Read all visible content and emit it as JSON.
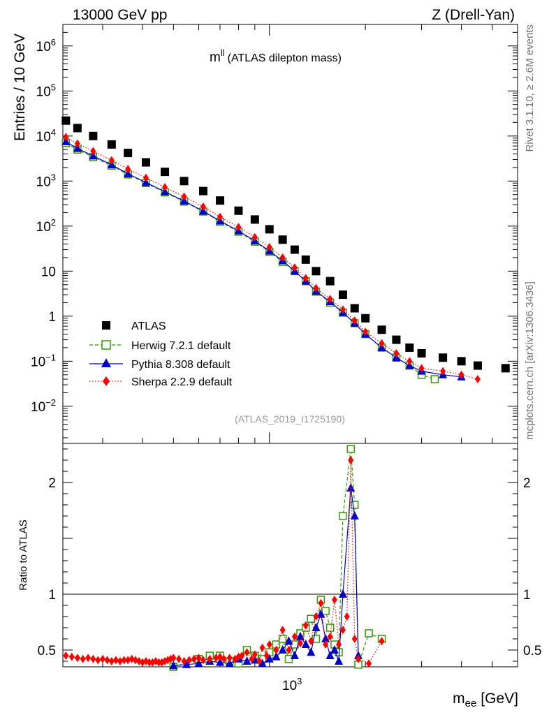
{
  "header": {
    "left": "13000 GeV pp",
    "right": "Z (Drell-Yan)"
  },
  "side_labels": {
    "top": "Rivet 3.1.10, ≥ 2.6M events",
    "bottom": "mcplots.cern.ch [arXiv:1306.3436]"
  },
  "chart_data": [
    {
      "type": "scatter",
      "title_main": "m",
      "title_sup": "ll",
      "title_rest": "(ATLAS dilepton mass)",
      "analysis_tag": "(ATLAS_2019_I1725190)",
      "ylabel": "Entries / 10 GeV",
      "xlabel_main": "m",
      "xlabel_sub": "ee",
      "xlabel_unit": "[GeV]",
      "xscale": "log",
      "yscale": "log",
      "xlim": [
        225,
        6000
      ],
      "ylim": [
        0.0015,
        3000000
      ],
      "x_tick_label_base": "10",
      "x_tick_label_exp": "3",
      "y_ticks": [
        {
          "v": 1000000,
          "base": "10",
          "exp": "6"
        },
        {
          "v": 100000,
          "base": "10",
          "exp": "5"
        },
        {
          "v": 10000,
          "base": "10",
          "exp": "4"
        },
        {
          "v": 1000,
          "base": "10",
          "exp": "3"
        },
        {
          "v": 100,
          "base": "10",
          "exp": "2"
        },
        {
          "v": 10,
          "base": "10",
          "exp": ""
        },
        {
          "v": 1,
          "base": "1",
          "exp": ""
        },
        {
          "v": 0.1,
          "base": "10",
          "exp": "−1"
        },
        {
          "v": 0.01,
          "base": "10",
          "exp": "−2"
        }
      ],
      "legend_position": "bottom-left",
      "series": [
        {
          "name": "ATLAS",
          "color": "#000000",
          "marker": "square-filled",
          "x": [
            230,
            250,
            280,
            320,
            360,
            410,
            470,
            540,
            620,
            700,
            800,
            900,
            1000,
            1100,
            1200,
            1300,
            1400,
            1550,
            1700,
            1850,
            2000,
            2250,
            2500,
            2750,
            3000,
            3500,
            4000,
            4500,
            5500
          ],
          "y": [
            22000,
            15000,
            10000,
            6500,
            4200,
            2600,
            1600,
            1000,
            600,
            370,
            220,
            140,
            85,
            50,
            30,
            18,
            10,
            6,
            3,
            1.5,
            0.9,
            0.5,
            0.3,
            0.2,
            0.15,
            0.12,
            0.1,
            0.08,
            0.07
          ]
        },
        {
          "name": "Herwig 7.2.1 default",
          "color": "#339900",
          "marker": "square-open",
          "line": "dashed",
          "x": [
            230,
            250,
            280,
            320,
            360,
            410,
            470,
            540,
            620,
            700,
            800,
            900,
            1000,
            1100,
            1200,
            1300,
            1400,
            1550,
            1700,
            1850,
            2000,
            2250,
            2500,
            2750,
            3000,
            3300
          ],
          "y": [
            7000,
            5000,
            3400,
            2200,
            1400,
            900,
            560,
            350,
            210,
            125,
            75,
            45,
            27,
            16,
            10,
            6,
            3.5,
            2.0,
            1.2,
            0.7,
            0.4,
            0.2,
            0.12,
            0.08,
            0.05,
            0.04
          ]
        },
        {
          "name": "Pythia 8.308 default",
          "color": "#0000cc",
          "marker": "triangle",
          "line": "solid",
          "x": [
            230,
            250,
            280,
            320,
            360,
            410,
            470,
            540,
            620,
            700,
            800,
            900,
            1000,
            1100,
            1200,
            1300,
            1400,
            1550,
            1700,
            1850,
            2000,
            2250,
            2500,
            2750,
            3000,
            3500,
            4000
          ],
          "y": [
            7500,
            5300,
            3600,
            2300,
            1450,
            930,
            580,
            360,
            215,
            130,
            78,
            47,
            28,
            17,
            10,
            6,
            3.6,
            2.1,
            1.2,
            0.7,
            0.4,
            0.2,
            0.12,
            0.08,
            0.06,
            0.05,
            0.045
          ]
        },
        {
          "name": "Sherpa 2.2.9 default",
          "color": "#ff0000",
          "marker": "diamond",
          "line": "dotted",
          "x": [
            230,
            250,
            280,
            320,
            360,
            410,
            470,
            540,
            620,
            700,
            800,
            900,
            1000,
            1100,
            1200,
            1300,
            1400,
            1550,
            1700,
            1850,
            2000,
            2250,
            2500,
            2750,
            3000,
            3500,
            4000,
            4500
          ],
          "y": [
            9500,
            6800,
            4600,
            2900,
            1850,
            1180,
            730,
            450,
            270,
            160,
            95,
            57,
            34,
            20,
            12,
            7,
            4.2,
            2.4,
            1.4,
            0.8,
            0.45,
            0.25,
            0.15,
            0.1,
            0.07,
            0.06,
            0.05,
            0.04
          ]
        }
      ]
    },
    {
      "type": "scatter",
      "ylabel": "Ratio to ATLAS",
      "xscale": "log",
      "xlim": [
        225,
        6000
      ],
      "ylim": [
        0.35,
        2.35
      ],
      "y_ticks": [
        {
          "v": 0.5,
          "label": "0.5"
        },
        {
          "v": 1,
          "label": "1"
        },
        {
          "v": 2,
          "label": "2"
        }
      ],
      "reference_line": 1,
      "series": [
        {
          "name": "Herwig 7.2.1 default",
          "color": "#339900",
          "x": [
            500,
            600,
            650,
            700,
            750,
            800,
            850,
            900,
            950,
            1000,
            1050,
            1100,
            1150,
            1200,
            1250,
            1300,
            1350,
            1400,
            1450,
            1500,
            1550,
            1600,
            1650,
            1700,
            1800,
            1850,
            1900,
            2050,
            2250
          ],
          "y": [
            0.35,
            0.42,
            0.45,
            0.45,
            0.4,
            0.38,
            0.5,
            0.45,
            0.42,
            0.48,
            0.55,
            0.6,
            0.42,
            0.55,
            0.65,
            0.7,
            0.78,
            0.6,
            0.95,
            0.85,
            0.7,
            0.55,
            0.48,
            1.7,
            2.3,
            1.8,
            0.37,
            0.65,
            0.6
          ]
        },
        {
          "name": "Pythia 8.308 default",
          "color": "#0000cc",
          "x": [
            500,
            550,
            600,
            650,
            700,
            750,
            800,
            850,
            900,
            950,
            1000,
            1050,
            1100,
            1150,
            1200,
            1250,
            1300,
            1350,
            1400,
            1450,
            1500,
            1550,
            1600,
            1650,
            1700,
            1800,
            1850,
            1900
          ],
          "y": [
            0.36,
            0.37,
            0.38,
            0.4,
            0.39,
            0.38,
            0.42,
            0.4,
            0.41,
            0.38,
            0.42,
            0.44,
            0.5,
            0.58,
            0.45,
            0.62,
            0.55,
            0.48,
            0.7,
            0.82,
            0.6,
            0.45,
            0.5,
            0.4,
            1.0,
            1.95,
            1.7,
            0.45
          ]
        },
        {
          "name": "Sherpa 2.2.9 default",
          "color": "#ff0000",
          "x": [
            230,
            240,
            250,
            260,
            270,
            280,
            290,
            300,
            310,
            320,
            330,
            340,
            350,
            360,
            370,
            380,
            390,
            400,
            410,
            420,
            430,
            440,
            450,
            460,
            470,
            480,
            490,
            500,
            520,
            540,
            560,
            580,
            600,
            620,
            650,
            680,
            700,
            720,
            750,
            780,
            800,
            820,
            850,
            880,
            900,
            930,
            950,
            980,
            1000,
            1050,
            1100,
            1150,
            1200,
            1250,
            1300,
            1350,
            1400,
            1450,
            1500,
            1550,
            1600,
            1650,
            1700,
            1750,
            1800,
            1850,
            1900,
            2050,
            2250
          ],
          "y": [
            0.45,
            0.44,
            0.43,
            0.42,
            0.43,
            0.42,
            0.41,
            0.42,
            0.41,
            0.4,
            0.41,
            0.4,
            0.41,
            0.41,
            0.42,
            0.41,
            0.4,
            0.39,
            0.4,
            0.39,
            0.39,
            0.4,
            0.39,
            0.39,
            0.4,
            0.41,
            0.42,
            0.43,
            0.42,
            0.4,
            0.41,
            0.42,
            0.43,
            0.41,
            0.42,
            0.43,
            0.44,
            0.42,
            0.43,
            0.42,
            0.44,
            0.45,
            0.48,
            0.42,
            0.46,
            0.4,
            0.52,
            0.45,
            0.55,
            0.5,
            0.68,
            0.5,
            0.62,
            0.56,
            0.72,
            0.58,
            0.8,
            0.92,
            0.55,
            0.62,
            0.95,
            0.55,
            0.68,
            0.8,
            2.2,
            0.6,
            0.42,
            0.38,
            0.58
          ]
        }
      ]
    }
  ]
}
